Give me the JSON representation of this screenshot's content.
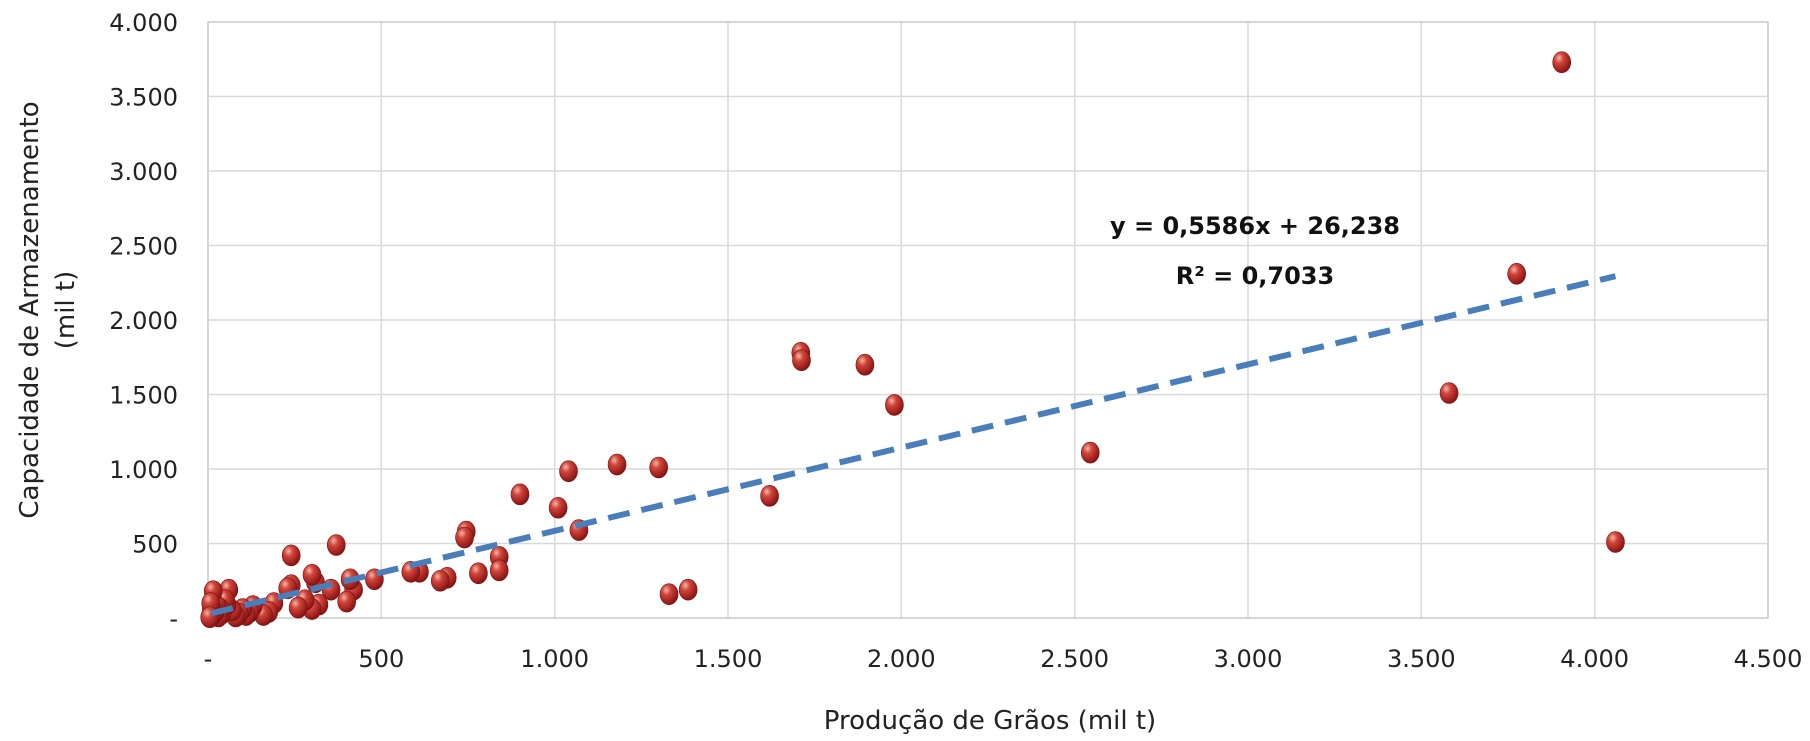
{
  "chart_data": {
    "type": "scatter",
    "xlabel": "Produção de Grãos (mil t)",
    "ylabel_line1": "Capacidade  de Armazenamento",
    "ylabel_line2": "(mil t)",
    "xlim": [
      0,
      4500
    ],
    "ylim": [
      0,
      4000
    ],
    "x_ticks": [
      0,
      500,
      1000,
      1500,
      2000,
      2500,
      3000,
      3500,
      4000,
      4500
    ],
    "x_tick_labels": [
      "-",
      "500",
      "1.000",
      "1.500",
      "2.000",
      "2.500",
      "3.000",
      "3.500",
      "4.000",
      "4.500"
    ],
    "y_ticks": [
      0,
      500,
      1000,
      1500,
      2000,
      2500,
      3000,
      3500,
      4000
    ],
    "y_tick_labels": [
      "-",
      "500",
      "1.000",
      "1.500",
      "2.000",
      "2.500",
      "3.000",
      "3.500",
      "4.000"
    ],
    "grid": true,
    "point_color": "#b22222",
    "trendline_color": "#4a7ebb",
    "trendline": {
      "type": "linear",
      "slope": 0.5586,
      "intercept": 26.238,
      "x_range": [
        10,
        4060
      ],
      "equation_label": "y = 0,5586x + 26,238",
      "r2_label": "R² = 0,7033"
    },
    "points": [
      [
        3905,
        3730
      ],
      [
        3775,
        2310
      ],
      [
        3580,
        1510
      ],
      [
        4060,
        510
      ],
      [
        2545,
        1110
      ],
      [
        1710,
        1780
      ],
      [
        1712,
        1730
      ],
      [
        1895,
        1700
      ],
      [
        1980,
        1430
      ],
      [
        1620,
        820
      ],
      [
        1300,
        1010
      ],
      [
        1180,
        1030
      ],
      [
        1040,
        985
      ],
      [
        1010,
        740
      ],
      [
        1070,
        590
      ],
      [
        900,
        830
      ],
      [
        1330,
        160
      ],
      [
        1385,
        190
      ],
      [
        745,
        580
      ],
      [
        740,
        540
      ],
      [
        840,
        410
      ],
      [
        840,
        320
      ],
      [
        780,
        300
      ],
      [
        690,
        270
      ],
      [
        670,
        250
      ],
      [
        610,
        310
      ],
      [
        585,
        310
      ],
      [
        480,
        260
      ],
      [
        420,
        190
      ],
      [
        410,
        260
      ],
      [
        400,
        110
      ],
      [
        370,
        490
      ],
      [
        355,
        190
      ],
      [
        320,
        90
      ],
      [
        310,
        240
      ],
      [
        300,
        290
      ],
      [
        300,
        60
      ],
      [
        280,
        120
      ],
      [
        260,
        70
      ],
      [
        240,
        420
      ],
      [
        240,
        220
      ],
      [
        230,
        200
      ],
      [
        190,
        100
      ],
      [
        175,
        40
      ],
      [
        160,
        20
      ],
      [
        130,
        80
      ],
      [
        120,
        40
      ],
      [
        110,
        20
      ],
      [
        100,
        60
      ],
      [
        90,
        30
      ],
      [
        80,
        10
      ],
      [
        70,
        50
      ],
      [
        60,
        190
      ],
      [
        55,
        90
      ],
      [
        50,
        120
      ],
      [
        40,
        30
      ],
      [
        35,
        60
      ],
      [
        30,
        10
      ],
      [
        25,
        80
      ],
      [
        20,
        40
      ],
      [
        15,
        180
      ],
      [
        12,
        20
      ],
      [
        10,
        60
      ],
      [
        8,
        100
      ],
      [
        5,
        5
      ]
    ]
  }
}
